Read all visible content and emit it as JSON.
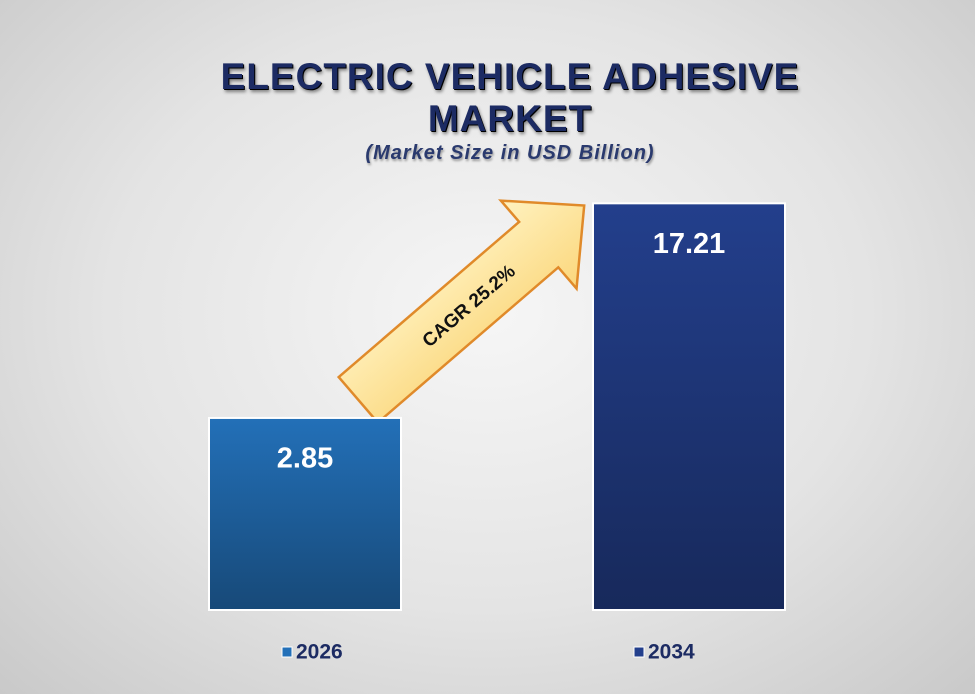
{
  "chart_data": {
    "type": "bar",
    "title": "ELECTRIC VEHICLE ADHESIVE MARKET",
    "subtitle": "(Market Size in USD Billion)",
    "annotation": "CAGR 25.2%",
    "categories": [
      "2026",
      "2034"
    ],
    "values": [
      2.85,
      17.21
    ],
    "colors": [
      "#2370b8",
      "#233f8c"
    ],
    "ylim": [
      -10,
      17.5
    ]
  }
}
